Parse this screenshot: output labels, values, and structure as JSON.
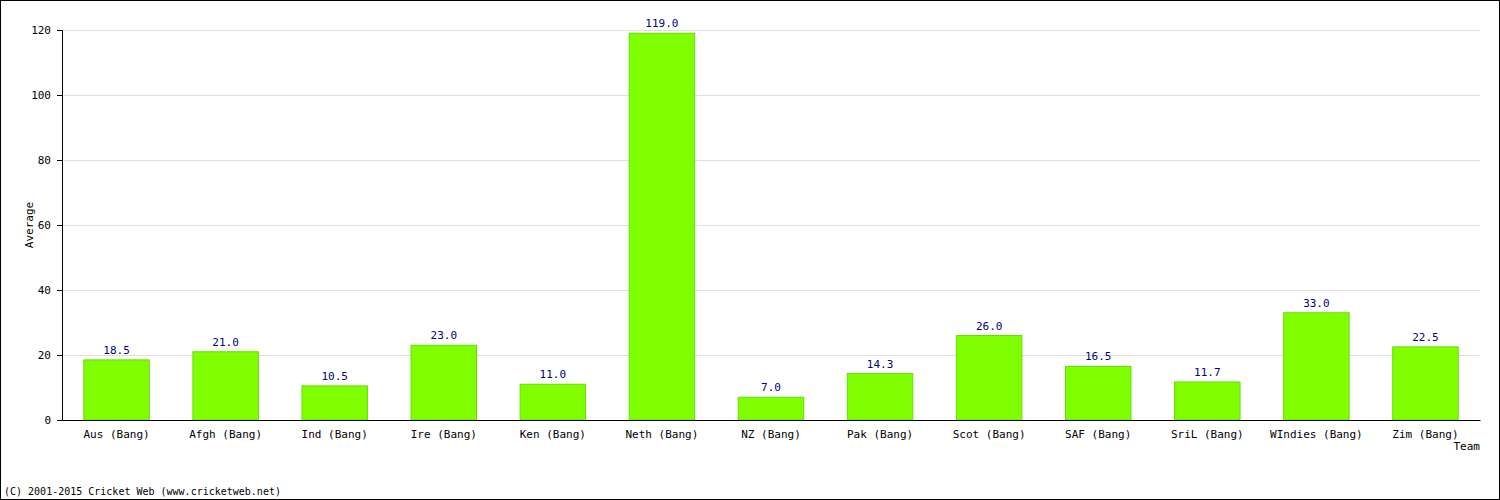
{
  "chart_data": {
    "type": "bar",
    "categories": [
      "Aus (Bang)",
      "Afgh (Bang)",
      "Ind (Bang)",
      "Ire (Bang)",
      "Ken (Bang)",
      "Neth (Bang)",
      "NZ (Bang)",
      "Pak (Bang)",
      "Scot (Bang)",
      "SAF (Bang)",
      "SriL (Bang)",
      "WIndies (Bang)",
      "Zim (Bang)"
    ],
    "values": [
      18.5,
      21,
      10.5,
      23,
      11,
      119,
      7,
      14.3,
      26,
      16.5,
      11.7,
      33,
      22.5
    ],
    "value_labels": [
      "18.5",
      "21.0",
      "10.5",
      "23.0",
      "11.0",
      "119.0",
      "7.0",
      "14.3",
      "26.0",
      "16.5",
      "11.7",
      "33.0",
      "22.5"
    ],
    "data_labels": true,
    "color": "#80ff00",
    "x_label": "Team",
    "y_label": "Average",
    "ylim": [
      0,
      120
    ],
    "yticks": [
      0,
      20,
      40,
      60,
      80,
      100,
      120
    ],
    "grid": true,
    "annotations": [
      "(C) 2001-2015 Cricket Web (www.cricketweb.net)"
    ]
  }
}
